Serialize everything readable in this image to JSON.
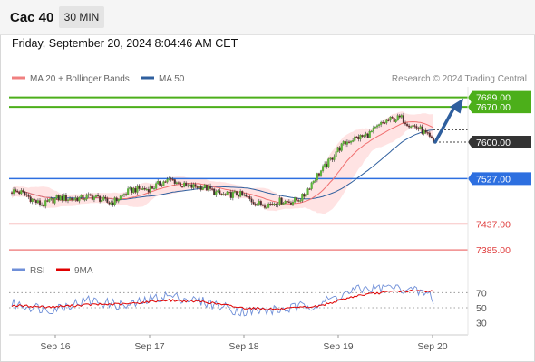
{
  "header": {
    "instrument": "Cac 40",
    "interval": "30 MIN"
  },
  "timestamp": "Friday, September 20, 2024 8:04:46 AM CET",
  "legend": {
    "items": [
      {
        "label": "MA 20 + Bollinger Bands",
        "color": "#f08080"
      },
      {
        "label": "MA 50",
        "color": "#2f5f9e"
      }
    ],
    "credit": "Research © 2024 Trading Central"
  },
  "rsi_legend": {
    "items": [
      {
        "label": "RSI",
        "color": "#6f8fd8"
      },
      {
        "label": "9MA",
        "color": "#e00000"
      }
    ]
  },
  "levels": [
    {
      "value": 7689.0,
      "label": "7689.00",
      "style": "green-box",
      "color": "#4caf1a"
    },
    {
      "value": 7670.0,
      "label": "7670.00",
      "style": "green-box",
      "color": "#4caf1a"
    },
    {
      "value": 7600.0,
      "label": "7600.00",
      "style": "dark-box",
      "color": "#333333"
    },
    {
      "value": 7527.0,
      "label": "7527.00",
      "style": "blue-box",
      "color": "#2d6fe0"
    },
    {
      "value": 7437.0,
      "label": "7437.00",
      "style": "red-text",
      "color": "#e04040"
    },
    {
      "value": 7385.0,
      "label": "7385.00",
      "style": "red-text",
      "color": "#e04040"
    }
  ],
  "chart_data": [
    {
      "type": "candlestick",
      "xlabel": "",
      "ylabel": "",
      "x_ticks": [
        "Sep 16",
        "Sep 17",
        "Sep 18",
        "Sep 19",
        "Sep 20"
      ],
      "ylim": [
        7360,
        7710
      ],
      "overlays": [
        "MA 20 + Bollinger Bands",
        "MA 50"
      ],
      "approx_close_path": [
        {
          "x": "Sep 16 start",
          "y": 7502
        },
        {
          "x": "Sep 16 mid",
          "y": 7478
        },
        {
          "x": "Sep 16 late",
          "y": 7492
        },
        {
          "x": "Sep 17 start",
          "y": 7482
        },
        {
          "x": "Sep 17 mid",
          "y": 7508
        },
        {
          "x": "Sep 17 late",
          "y": 7522
        },
        {
          "x": "Sep 18 start",
          "y": 7505
        },
        {
          "x": "Sep 18 mid",
          "y": 7492
        },
        {
          "x": "Sep 18 late",
          "y": 7474
        },
        {
          "x": "Sep 19 start",
          "y": 7492
        },
        {
          "x": "Sep 19 mid",
          "y": 7585
        },
        {
          "x": "Sep 19 late",
          "y": 7620
        },
        {
          "x": "Sep 20 start",
          "y": 7652
        },
        {
          "x": "Sep 20 last",
          "y": 7600
        }
      ],
      "forecast": {
        "from": 7600,
        "to": 7689
      }
    },
    {
      "type": "line",
      "series": [
        {
          "name": "RSI",
          "values": [
            55,
            48,
            60,
            52,
            66,
            58,
            45,
            47,
            55,
            74,
            78,
            66
          ]
        },
        {
          "name": "9MA",
          "values": [
            53,
            51,
            54,
            55,
            60,
            58,
            50,
            48,
            52,
            66,
            72,
            72
          ]
        }
      ],
      "y_ticks": [
        70,
        50,
        30
      ],
      "ylim": [
        20,
        80
      ]
    }
  ]
}
